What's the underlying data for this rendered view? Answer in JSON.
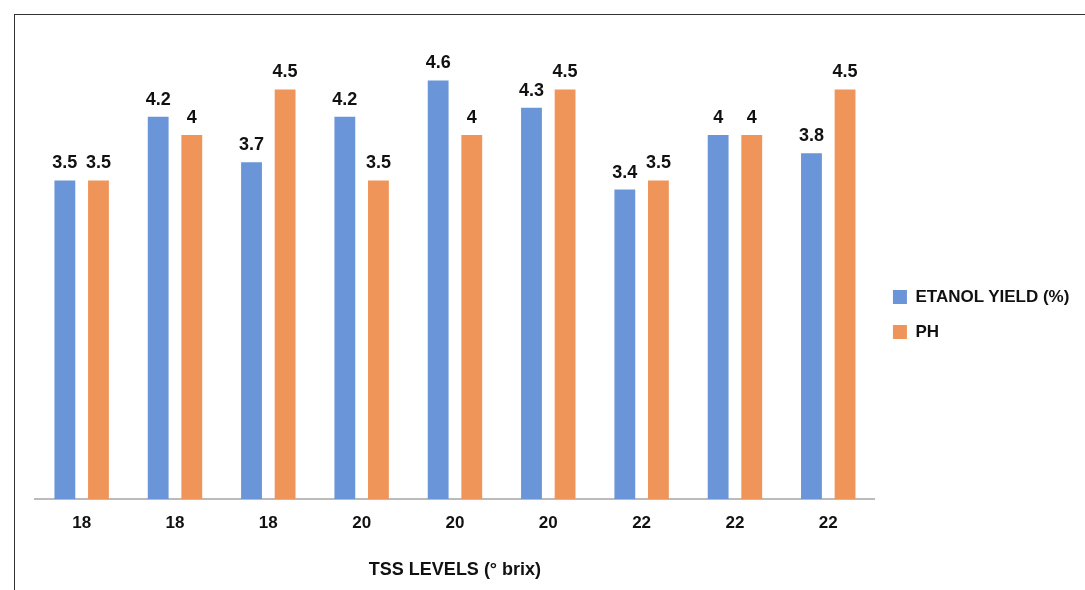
{
  "chart_data": {
    "type": "bar",
    "xlabel": "TSS LEVELS (° brix)",
    "categories": [
      "18",
      "18",
      "18",
      "20",
      "20",
      "20",
      "22",
      "22",
      "22"
    ],
    "series": [
      {
        "name": "ETANOL YIELD (%)",
        "color": "#6a95d8",
        "values": [
          3.5,
          4.2,
          3.7,
          4.2,
          4.6,
          4.3,
          3.4,
          4,
          3.8
        ]
      },
      {
        "name": "PH",
        "color": "#f0955a",
        "values": [
          3.5,
          4,
          4.5,
          3.5,
          4,
          4.5,
          3.5,
          4,
          4.5
        ]
      }
    ],
    "data_labels": true,
    "legend": "right",
    "grid": false
  }
}
